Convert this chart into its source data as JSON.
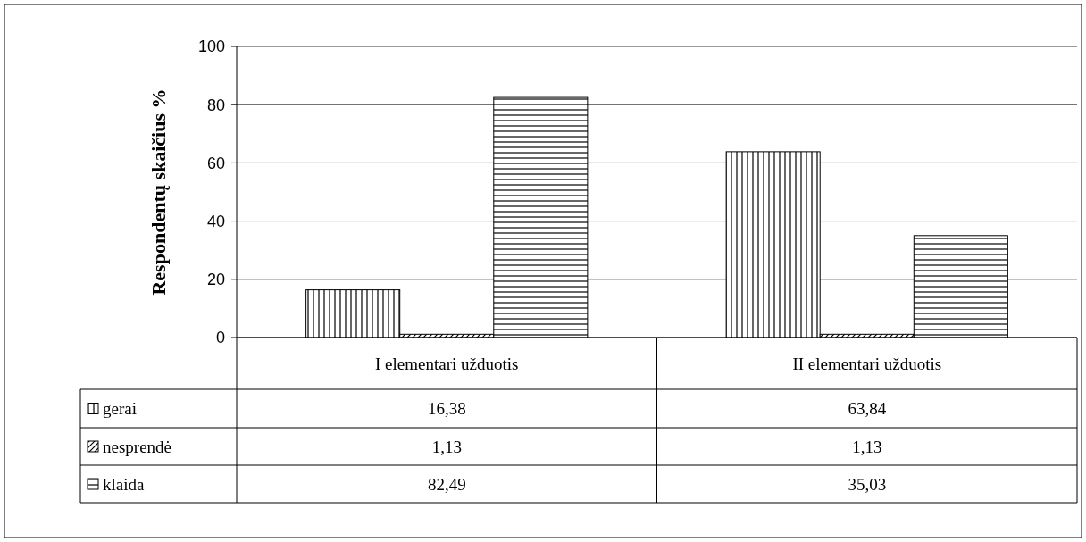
{
  "chart_data": {
    "type": "bar",
    "ylabel": "Respondentų skaičius %",
    "categories": [
      "I elementari užduotis",
      "II elementari užduotis"
    ],
    "series": [
      {
        "name": "gerai",
        "color": "#000000",
        "values": [
          16.38,
          63.84
        ],
        "value_labels": [
          "16,38",
          "63,84"
        ]
      },
      {
        "name": "nesprendė",
        "color": "#000000",
        "values": [
          1.13,
          1.13
        ],
        "value_labels": [
          "1,13",
          "1,13"
        ]
      },
      {
        "name": "klaida",
        "color": "#000000",
        "values": [
          82.49,
          35.03
        ],
        "value_labels": [
          "82,49",
          "35,03"
        ]
      }
    ],
    "ylim": [
      0,
      100
    ],
    "yticks": [
      0,
      20,
      40,
      60,
      80,
      100
    ],
    "grid": "y",
    "legend": "bottom"
  }
}
